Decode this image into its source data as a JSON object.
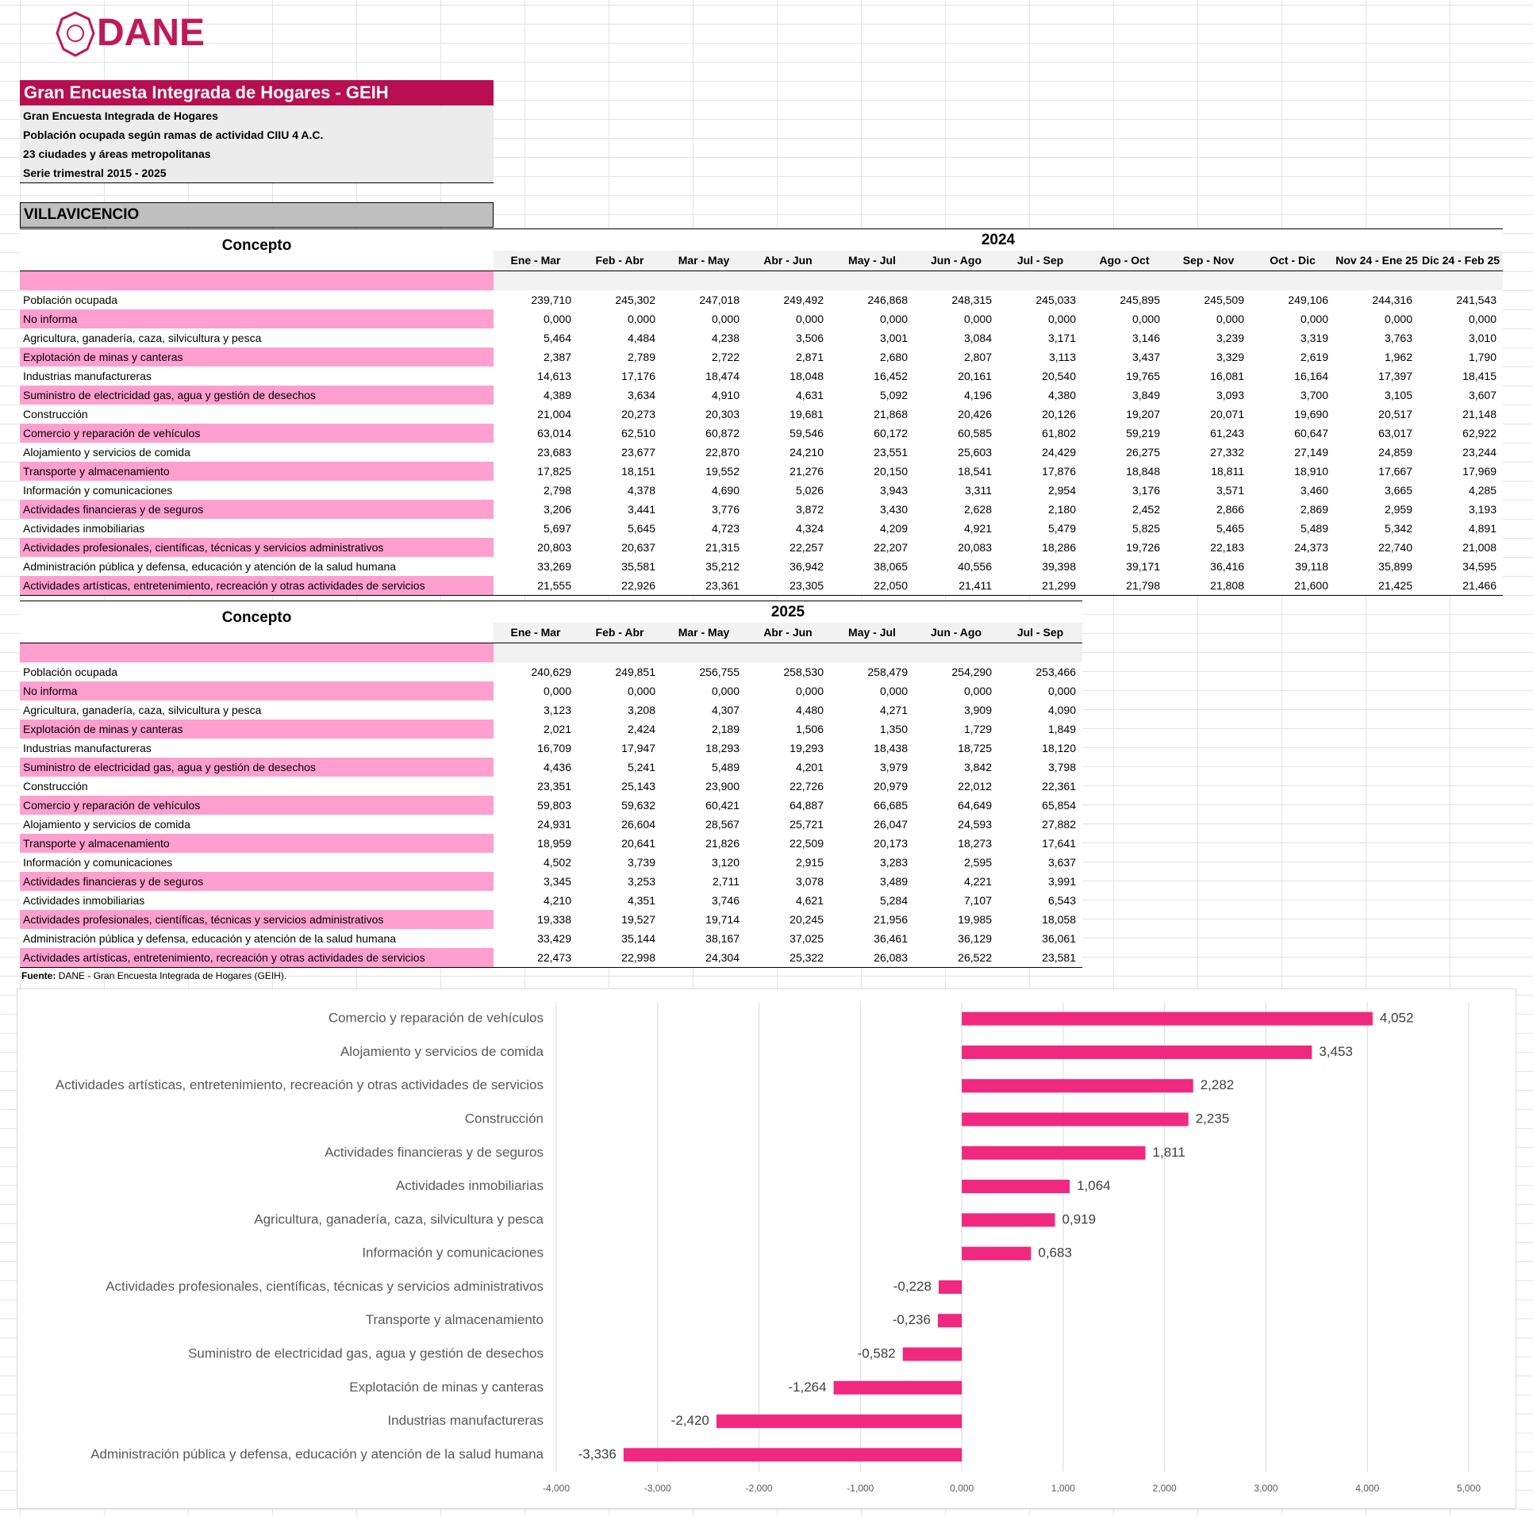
{
  "header": {
    "logo": "DANE",
    "title": "Gran Encuesta Integrada de Hogares - GEIH",
    "subtitles": [
      "Gran Encuesta Integrada de Hogares",
      "Población ocupada según ramas de actividad CIIU 4 A.C.",
      "23 ciudades y áreas metropolitanas",
      "Serie trimestral 2015 - 2025"
    ],
    "region": "VILLAVICENCIO"
  },
  "tables": [
    {
      "concept_header": "Concepto",
      "year": "2024",
      "columns": [
        "Ene - Mar",
        "Feb - Abr",
        "Mar - May",
        "Abr - Jun",
        "May - Jul",
        "Jun - Ago",
        "Jul - Sep",
        "Ago - Oct",
        "Sep - Nov",
        "Oct - Dic",
        "Nov 24 - Ene 25",
        "Dic 24 - Feb 25"
      ],
      "rows": [
        {
          "label": "Población ocupada",
          "values": [
            "239,710",
            "245,302",
            "247,018",
            "249,492",
            "246,868",
            "248,315",
            "245,033",
            "245,895",
            "245,509",
            "249,106",
            "244,316",
            "241,543"
          ]
        },
        {
          "label": "No informa",
          "values": [
            "0,000",
            "0,000",
            "0,000",
            "0,000",
            "0,000",
            "0,000",
            "0,000",
            "0,000",
            "0,000",
            "0,000",
            "0,000",
            "0,000"
          ]
        },
        {
          "label": "Agricultura, ganadería, caza, silvicultura y pesca",
          "values": [
            "5,464",
            "4,484",
            "4,238",
            "3,506",
            "3,001",
            "3,084",
            "3,171",
            "3,146",
            "3,239",
            "3,319",
            "3,763",
            "3,010"
          ]
        },
        {
          "label": "Explotación de minas y canteras",
          "values": [
            "2,387",
            "2,789",
            "2,722",
            "2,871",
            "2,680",
            "2,807",
            "3,113",
            "3,437",
            "3,329",
            "2,619",
            "1,962",
            "1,790"
          ]
        },
        {
          "label": "Industrias manufactureras",
          "values": [
            "14,613",
            "17,176",
            "18,474",
            "18,048",
            "16,452",
            "20,161",
            "20,540",
            "19,765",
            "16,081",
            "16,164",
            "17,397",
            "18,415"
          ]
        },
        {
          "label": "Suministro de electricidad gas, agua y gestión de desechos",
          "values": [
            "4,389",
            "3,634",
            "4,910",
            "4,631",
            "5,092",
            "4,196",
            "4,380",
            "3,849",
            "3,093",
            "3,700",
            "3,105",
            "3,607"
          ]
        },
        {
          "label": "Construcción",
          "values": [
            "21,004",
            "20,273",
            "20,303",
            "19,681",
            "21,868",
            "20,426",
            "20,126",
            "19,207",
            "20,071",
            "19,690",
            "20,517",
            "21,148"
          ]
        },
        {
          "label": "Comercio y reparación de vehículos",
          "values": [
            "63,014",
            "62,510",
            "60,872",
            "59,546",
            "60,172",
            "60,585",
            "61,802",
            "59,219",
            "61,243",
            "60,647",
            "63,017",
            "62,922"
          ]
        },
        {
          "label": "Alojamiento y servicios de comida",
          "values": [
            "23,683",
            "23,677",
            "22,870",
            "24,210",
            "23,551",
            "25,603",
            "24,429",
            "26,275",
            "27,332",
            "27,149",
            "24,859",
            "23,244"
          ]
        },
        {
          "label": "Transporte y almacenamiento",
          "values": [
            "17,825",
            "18,151",
            "19,552",
            "21,276",
            "20,150",
            "18,541",
            "17,876",
            "18,848",
            "18,811",
            "18,910",
            "17,667",
            "17,969"
          ]
        },
        {
          "label": "Información y comunicaciones",
          "values": [
            "2,798",
            "4,378",
            "4,690",
            "5,026",
            "3,943",
            "3,311",
            "2,954",
            "3,176",
            "3,571",
            "3,460",
            "3,665",
            "4,285"
          ]
        },
        {
          "label": "Actividades financieras y de seguros",
          "values": [
            "3,206",
            "3,441",
            "3,776",
            "3,872",
            "3,430",
            "2,628",
            "2,180",
            "2,452",
            "2,866",
            "2,869",
            "2,959",
            "3,193"
          ]
        },
        {
          "label": "Actividades inmobiliarias",
          "values": [
            "5,697",
            "5,645",
            "4,723",
            "4,324",
            "4,209",
            "4,921",
            "5,479",
            "5,825",
            "5,465",
            "5,489",
            "5,342",
            "4,891"
          ]
        },
        {
          "label": "Actividades profesionales, científicas, técnicas y servicios administrativos",
          "values": [
            "20,803",
            "20,637",
            "21,315",
            "22,257",
            "22,207",
            "20,083",
            "18,286",
            "19,726",
            "22,183",
            "24,373",
            "22,740",
            "21,008"
          ]
        },
        {
          "label": "Administración pública y defensa, educación y atención de la salud humana",
          "values": [
            "33,269",
            "35,581",
            "35,212",
            "36,942",
            "38,065",
            "40,556",
            "39,398",
            "39,171",
            "36,416",
            "39,118",
            "35,899",
            "34,595"
          ]
        },
        {
          "label": "Actividades artísticas, entretenimiento, recreación y otras actividades de servicios",
          "values": [
            "21,555",
            "22,926",
            "23,361",
            "23,305",
            "22,050",
            "21,411",
            "21,299",
            "21,798",
            "21,808",
            "21,600",
            "21,425",
            "21,466"
          ]
        }
      ]
    },
    {
      "concept_header": "Concepto",
      "year": "2025",
      "columns": [
        "Ene - Mar",
        "Feb - Abr",
        "Mar - May",
        "Abr - Jun",
        "May - Jul",
        "Jun - Ago",
        "Jul - Sep"
      ],
      "rows": [
        {
          "label": "Población ocupada",
          "values": [
            "240,629",
            "249,851",
            "256,755",
            "258,530",
            "258,479",
            "254,290",
            "253,466"
          ]
        },
        {
          "label": "No informa",
          "values": [
            "0,000",
            "0,000",
            "0,000",
            "0,000",
            "0,000",
            "0,000",
            "0,000"
          ]
        },
        {
          "label": "Agricultura, ganadería, caza, silvicultura y pesca",
          "values": [
            "3,123",
            "3,208",
            "4,307",
            "4,480",
            "4,271",
            "3,909",
            "4,090"
          ]
        },
        {
          "label": "Explotación de minas y canteras",
          "values": [
            "2,021",
            "2,424",
            "2,189",
            "1,506",
            "1,350",
            "1,729",
            "1,849"
          ]
        },
        {
          "label": "Industrias manufactureras",
          "values": [
            "16,709",
            "17,947",
            "18,293",
            "19,293",
            "18,438",
            "18,725",
            "18,120"
          ]
        },
        {
          "label": "Suministro de electricidad gas, agua y gestión de desechos",
          "values": [
            "4,436",
            "5,241",
            "5,489",
            "4,201",
            "3,979",
            "3,842",
            "3,798"
          ]
        },
        {
          "label": "Construcción",
          "values": [
            "23,351",
            "25,143",
            "23,900",
            "22,726",
            "20,979",
            "22,012",
            "22,361"
          ]
        },
        {
          "label": "Comercio y reparación de vehículos",
          "values": [
            "59,803",
            "59,632",
            "60,421",
            "64,887",
            "66,685",
            "64,649",
            "65,854"
          ]
        },
        {
          "label": "Alojamiento y servicios de comida",
          "values": [
            "24,931",
            "26,604",
            "28,567",
            "25,721",
            "26,047",
            "24,593",
            "27,882"
          ]
        },
        {
          "label": "Transporte y almacenamiento",
          "values": [
            "18,959",
            "20,641",
            "21,826",
            "22,509",
            "20,173",
            "18,273",
            "17,641"
          ]
        },
        {
          "label": "Información y comunicaciones",
          "values": [
            "4,502",
            "3,739",
            "3,120",
            "2,915",
            "3,283",
            "2,595",
            "3,637"
          ]
        },
        {
          "label": "Actividades financieras y de seguros",
          "values": [
            "3,345",
            "3,253",
            "2,711",
            "3,078",
            "3,489",
            "4,221",
            "3,991"
          ]
        },
        {
          "label": "Actividades inmobiliarias",
          "values": [
            "4,210",
            "4,351",
            "3,746",
            "4,621",
            "5,284",
            "7,107",
            "6,543"
          ]
        },
        {
          "label": "Actividades profesionales, científicas, técnicas y servicios administrativos",
          "values": [
            "19,338",
            "19,527",
            "19,714",
            "20,245",
            "21,956",
            "19,985",
            "18,058"
          ]
        },
        {
          "label": "Administración pública y defensa, educación y atención de la salud humana",
          "values": [
            "33,429",
            "35,144",
            "38,167",
            "37,025",
            "36,461",
            "36,129",
            "36,061"
          ]
        },
        {
          "label": "Actividades artísticas, entretenimiento, recreación y otras actividades de servicios",
          "values": [
            "22,473",
            "22,998",
            "24,304",
            "25,322",
            "26,083",
            "26,522",
            "23,581"
          ]
        }
      ]
    }
  ],
  "footnote": {
    "label": "Fuente:",
    "text": "DANE - Gran Encuesta Integrada de Hogares (GEIH)."
  },
  "chart_data": {
    "type": "bar",
    "orientation": "horizontal",
    "color": "#f0287f",
    "grid": true,
    "categories": [
      "Comercio y reparación de vehículos",
      "Alojamiento y servicios de comida",
      "Actividades artísticas, entretenimiento, recreación y otras actividades de servicios",
      "Construcción",
      "Actividades financieras y de seguros",
      "Actividades inmobiliarias",
      "Agricultura, ganadería, caza, silvicultura y pesca",
      "Información y comunicaciones",
      "Actividades profesionales, científicas, técnicas y servicios administrativos",
      "Transporte y almacenamiento",
      "Suministro de electricidad gas, agua y gestión de desechos",
      "Explotación de minas y canteras",
      "Industrias manufactureras",
      "Administración pública y defensa, educación y atención de la salud humana"
    ],
    "values": [
      4.052,
      3.453,
      2.282,
      2.235,
      1.811,
      1.064,
      0.919,
      0.683,
      -0.228,
      -0.236,
      -0.582,
      -1.264,
      -2.42,
      -3.336
    ],
    "value_labels": [
      "4,052",
      "3,453",
      "2,282",
      "2,235",
      "1,811",
      "1,064",
      "0,919",
      "0,683",
      "-0,228",
      "-0,236",
      "-0,582",
      "-1,264",
      "-2,420",
      "-3,336"
    ],
    "xlim": [
      -4,
      5
    ],
    "xticks": [
      {
        "value": -4,
        "label": "-4,000"
      },
      {
        "value": -3,
        "label": "-3,000"
      },
      {
        "value": -2,
        "label": "-2,000"
      },
      {
        "value": -1,
        "label": "-1,000"
      },
      {
        "value": 0,
        "label": "0,000"
      },
      {
        "value": 1,
        "label": "1,000"
      },
      {
        "value": 2,
        "label": "2,000"
      },
      {
        "value": 3,
        "label": "3,000"
      },
      {
        "value": 4,
        "label": "4,000"
      },
      {
        "value": 5,
        "label": "5,000"
      }
    ]
  }
}
